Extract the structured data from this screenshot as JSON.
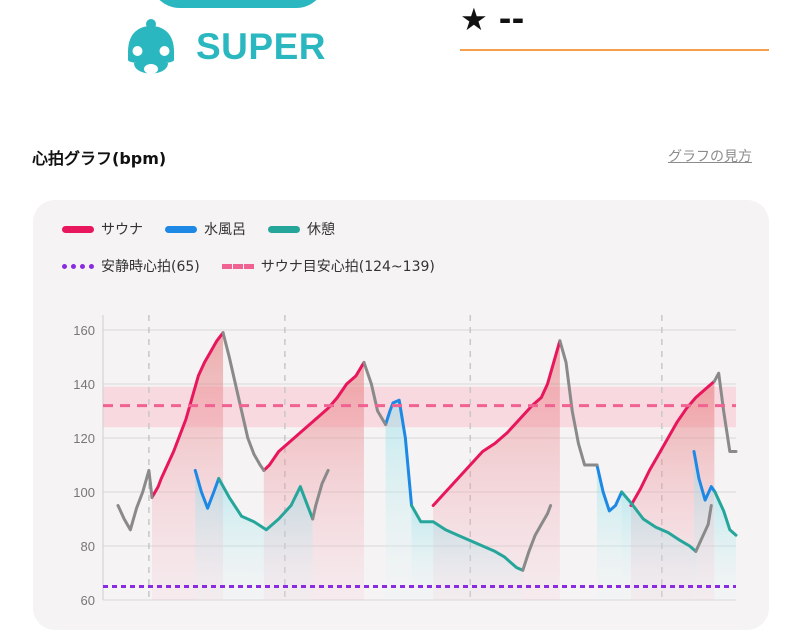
{
  "badge": {
    "label": "SUPER",
    "icon": "helmet-face-icon",
    "color": "#2ab7c0"
  },
  "rating": {
    "star": "★",
    "value": "--",
    "underline_color": "#f5a04a"
  },
  "section": {
    "title": "心拍グラフ(bpm)",
    "help_link": "グラフの見方"
  },
  "legend": {
    "sauna": "サウナ",
    "cold_bath": "水風呂",
    "rest": "休憩",
    "resting_hr": "安静時心拍(65)",
    "target_hr": "サウナ目安心拍(124~139)"
  },
  "colors": {
    "sauna": "#e8175d",
    "cold_bath": "#1e88e5",
    "rest": "#26a69a",
    "transition": "#8a8a8a",
    "resting_line": "#8a2be2",
    "target_line": "#f06292",
    "target_band": "#f8d0d8"
  },
  "chart_data": {
    "type": "line",
    "title": "心拍グラフ(bpm)",
    "ylim": [
      60,
      160
    ],
    "y_ticks": [
      60,
      80,
      100,
      120,
      140,
      160
    ],
    "x_range": [
      0,
      100
    ],
    "grid": true,
    "legend_placement": "top-left",
    "resting_hr": 65,
    "target_band": [
      124,
      139
    ],
    "target_line": 132,
    "series": [
      {
        "name": "サウナ",
        "segments": [
          [
            [
              5.5,
              98
            ],
            [
              6.5,
              102
            ],
            [
              7,
              105
            ],
            [
              8,
              110
            ],
            [
              9,
              115
            ],
            [
              10,
              121
            ],
            [
              11,
              127
            ],
            [
              12,
              135
            ],
            [
              13,
              143
            ],
            [
              14,
              148
            ],
            [
              15,
              152
            ],
            [
              16,
              156
            ],
            [
              17,
              159
            ]
          ],
          [
            [
              23.6,
              108
            ],
            [
              24.5,
              110
            ],
            [
              26,
              115
            ],
            [
              28,
              119
            ],
            [
              30,
              123
            ],
            [
              32,
              127
            ],
            [
              34,
              131
            ],
            [
              35.5,
              135
            ],
            [
              37,
              140
            ],
            [
              38.5,
              143
            ],
            [
              39.8,
              148
            ]
          ],
          [
            [
              51,
              95
            ],
            [
              53,
              100
            ],
            [
              55,
              105
            ],
            [
              57,
              110
            ],
            [
              59,
              115
            ],
            [
              61,
              118
            ],
            [
              63,
              122
            ],
            [
              65,
              127
            ],
            [
              67,
              132
            ],
            [
              68.5,
              135
            ],
            [
              69.5,
              140
            ],
            [
              70.5,
              148
            ],
            [
              71.5,
              156
            ]
          ],
          [
            [
              83,
              95
            ],
            [
              84.5,
              101
            ],
            [
              86,
              108
            ],
            [
              87.5,
              114
            ],
            [
              89,
              120
            ],
            [
              90.5,
              126
            ],
            [
              92,
              131
            ],
            [
              93.5,
              135
            ],
            [
              95,
              138
            ],
            [
              96.5,
              141
            ]
          ]
        ]
      },
      {
        "name": "水風呂",
        "segments": [
          [
            [
              12.5,
              108
            ],
            [
              13.5,
              100
            ],
            [
              14.5,
              94
            ],
            [
              15.5,
              100
            ],
            [
              16.3,
              105
            ]
          ],
          [
            [
              43.3,
              125
            ],
            [
              44,
              130
            ],
            [
              44.5,
              133
            ],
            [
              45.5,
              134
            ],
            [
              46.5,
              120
            ],
            [
              47.5,
              95
            ]
          ],
          [
            [
              77.5,
              110
            ],
            [
              78.5,
              100
            ],
            [
              79.5,
              93
            ],
            [
              80.5,
              95
            ],
            [
              81.5,
              100
            ]
          ],
          [
            [
              93.2,
              115
            ],
            [
              94,
              105
            ],
            [
              95,
              97
            ],
            [
              96,
              102
            ],
            [
              96.6,
              100
            ]
          ]
        ]
      },
      {
        "name": "休憩",
        "segments": [
          [
            [
              16.3,
              105
            ],
            [
              18,
              98
            ],
            [
              20,
              91
            ],
            [
              22,
              89
            ],
            [
              24,
              86
            ],
            [
              26,
              90
            ],
            [
              28,
              95
            ],
            [
              29.5,
              102
            ],
            [
              30.5,
              96
            ],
            [
              31.5,
              90
            ]
          ],
          [
            [
              47.5,
              95
            ],
            [
              49,
              89
            ],
            [
              51,
              89
            ],
            [
              53,
              86
            ],
            [
              55,
              84
            ],
            [
              57,
              82
            ],
            [
              59,
              80
            ],
            [
              61,
              78
            ],
            [
              62.5,
              76
            ],
            [
              63.5,
              74
            ],
            [
              64.5,
              72
            ],
            [
              65.5,
              71
            ]
          ],
          [
            [
              81.5,
              100
            ],
            [
              83,
              96
            ],
            [
              85,
              90
            ],
            [
              87,
              87
            ],
            [
              89,
              85
            ],
            [
              91,
              82
            ],
            [
              92.5,
              80
            ],
            [
              93.5,
              78
            ]
          ],
          [
            [
              96.6,
              100
            ],
            [
              98,
              93
            ],
            [
              99,
              86
            ],
            [
              100,
              84
            ]
          ]
        ]
      },
      {
        "name": "transition",
        "segments": [
          [
            [
              0,
              95
            ],
            [
              1,
              90
            ],
            [
              2,
              86
            ],
            [
              3,
              94
            ],
            [
              4,
              100
            ],
            [
              5,
              108
            ],
            [
              5.5,
              98
            ]
          ],
          [
            [
              17,
              159
            ],
            [
              18,
              150
            ],
            [
              19,
              140
            ],
            [
              20,
              130
            ],
            [
              21,
              120
            ],
            [
              22,
              114
            ],
            [
              23,
              110
            ],
            [
              23.6,
              108
            ]
          ],
          [
            [
              31.5,
              90
            ],
            [
              32,
              95
            ],
            [
              33,
              103
            ],
            [
              34,
              108
            ]
          ],
          [
            [
              39.8,
              148
            ],
            [
              41,
              140
            ],
            [
              42,
              130
            ],
            [
              43.3,
              125
            ]
          ],
          [
            [
              65.5,
              71
            ],
            [
              66.5,
              78
            ],
            [
              67.5,
              84
            ],
            [
              68.5,
              88
            ],
            [
              69.5,
              92
            ],
            [
              70,
              95
            ]
          ],
          [
            [
              71.5,
              156
            ],
            [
              72.5,
              148
            ],
            [
              73.5,
              130
            ],
            [
              74.5,
              118
            ],
            [
              75.5,
              110
            ],
            [
              77.5,
              110
            ]
          ],
          [
            [
              93.5,
              78
            ],
            [
              94.5,
              83
            ],
            [
              95.5,
              88
            ],
            [
              96,
              95
            ]
          ],
          [
            [
              96.5,
              141
            ],
            [
              97.2,
              144
            ],
            [
              98,
              130
            ],
            [
              99,
              115
            ],
            [
              100,
              115
            ]
          ]
        ]
      }
    ]
  }
}
